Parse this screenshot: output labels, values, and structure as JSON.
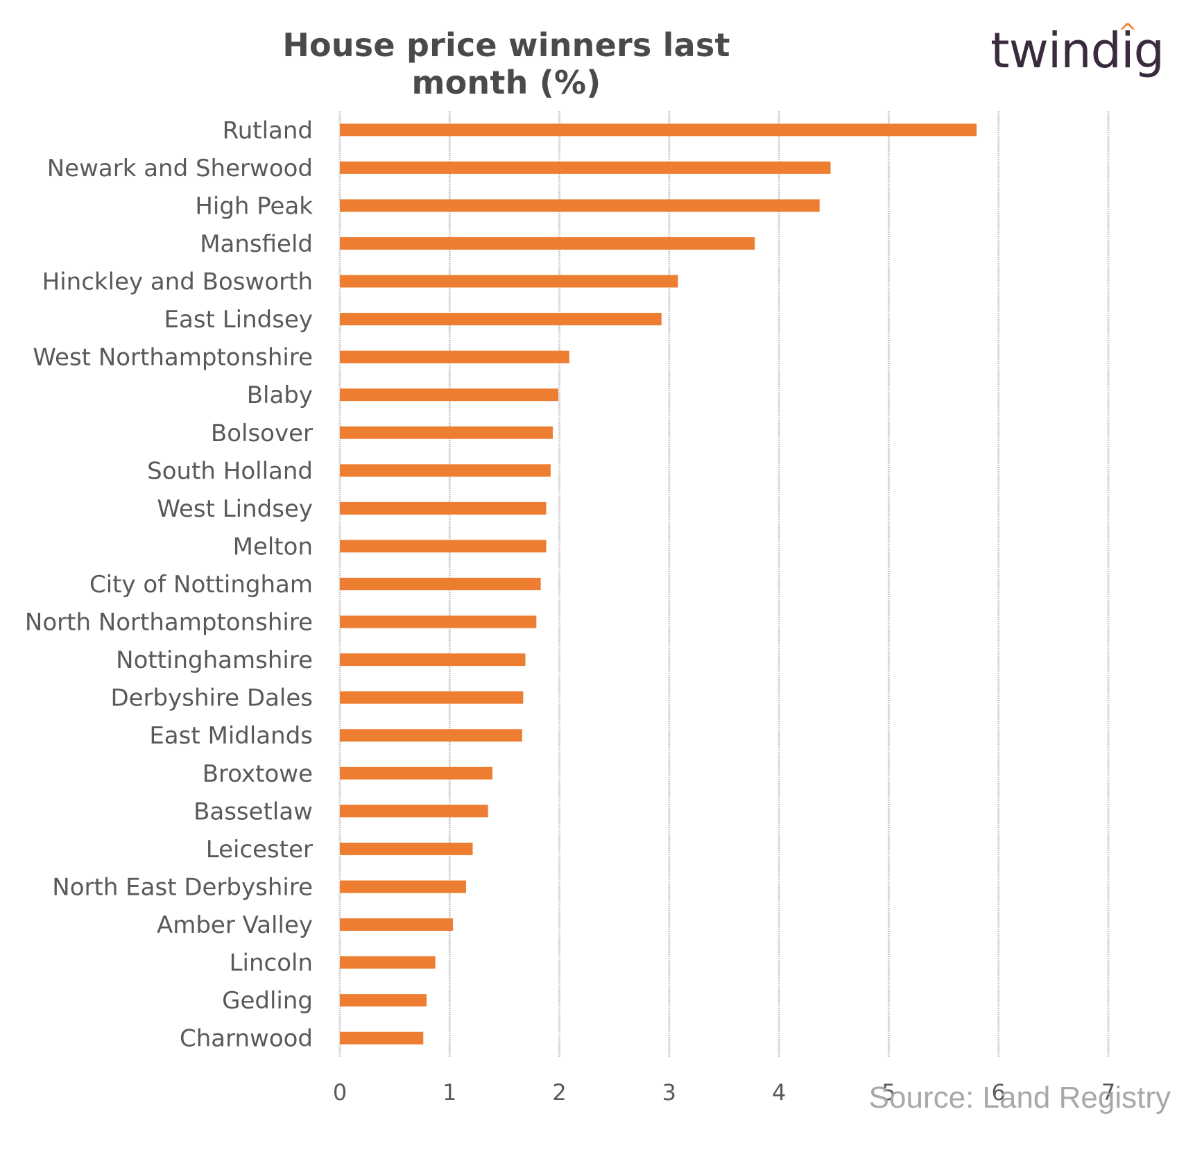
{
  "header": {
    "title": "House price winners last month (%)",
    "logo_pre": "twind",
    "logo_accent": "i",
    "logo_post": "g",
    "source": "Source: Land Registry"
  },
  "colors": {
    "bar": "#ED7D31",
    "grid": "#d0d0d0",
    "text": "#595959",
    "logo": "#3a2a3d",
    "logo_accent": "#f0803a"
  },
  "chart_data": {
    "type": "bar",
    "orientation": "horizontal",
    "title": "House price winners last month (%)",
    "xlabel": "",
    "ylabel": "",
    "xlim": [
      0,
      7
    ],
    "xticks": [
      0,
      1,
      2,
      3,
      4,
      5,
      6,
      7
    ],
    "grid": true,
    "categories": [
      "Rutland",
      "Newark and Sherwood",
      "High Peak",
      "Mansfield",
      "Hinckley and Bosworth",
      "East Lindsey",
      "West Northamptonshire",
      "Blaby",
      "Bolsover",
      "South Holland",
      "West Lindsey",
      "Melton",
      "City of Nottingham",
      "North Northamptonshire",
      "Nottinghamshire",
      "Derbyshire Dales",
      "East Midlands",
      "Broxtowe",
      "Bassetlaw",
      "Leicester",
      "North East Derbyshire",
      "Amber Valley",
      "Lincoln",
      "Gedling",
      "Charnwood"
    ],
    "values": [
      5.8,
      4.47,
      4.37,
      3.78,
      3.08,
      2.93,
      2.09,
      1.99,
      1.94,
      1.92,
      1.88,
      1.88,
      1.83,
      1.79,
      1.69,
      1.67,
      1.66,
      1.39,
      1.35,
      1.21,
      1.15,
      1.03,
      0.87,
      0.79,
      0.76
    ]
  }
}
